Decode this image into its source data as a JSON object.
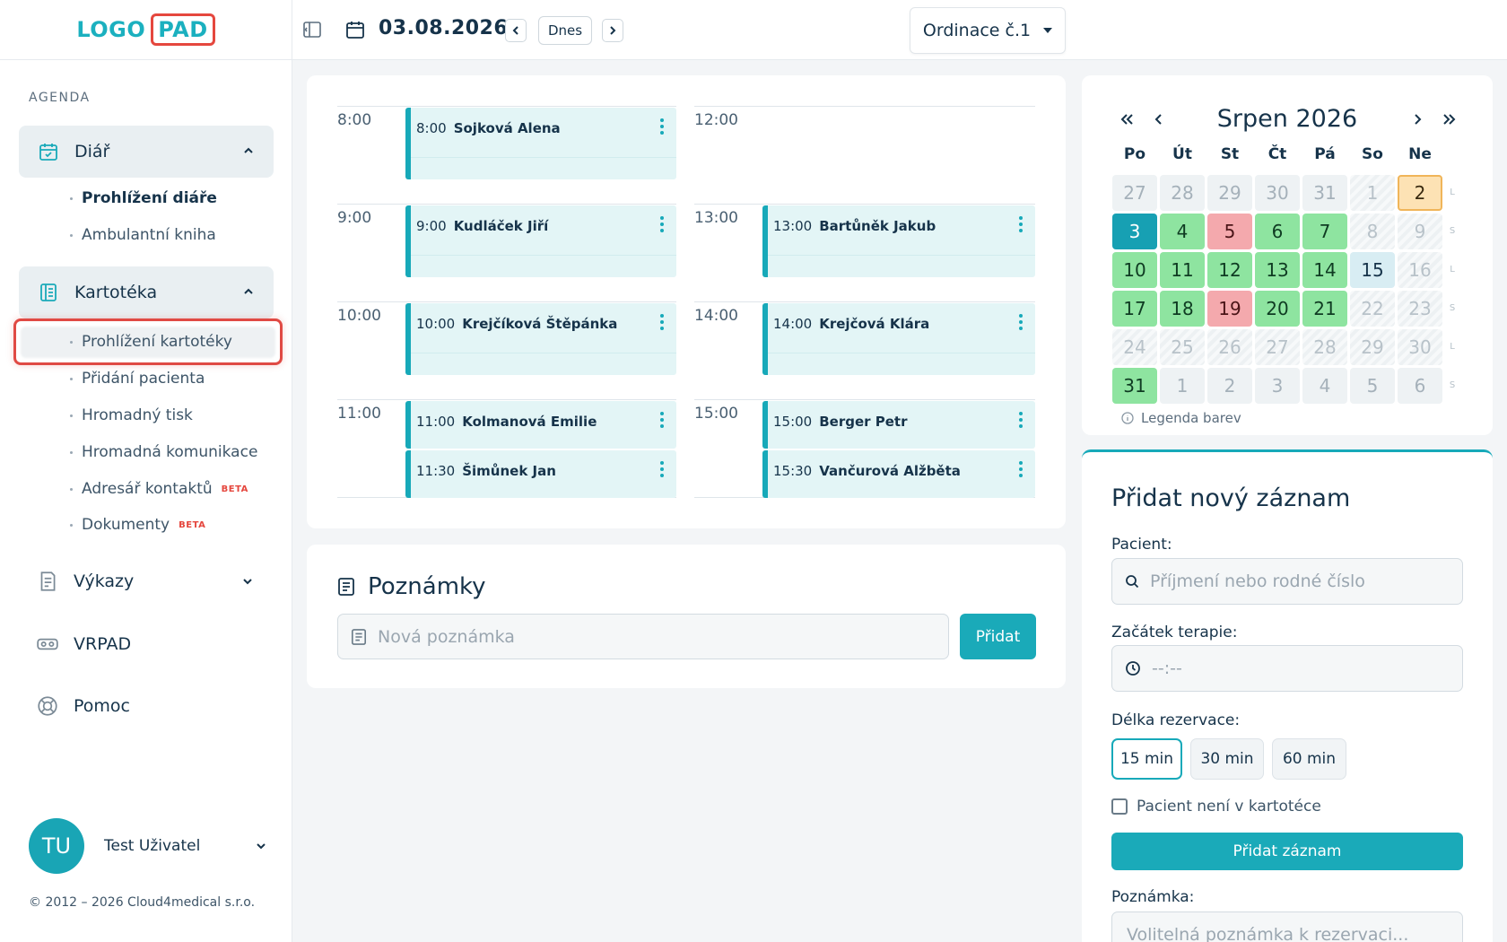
{
  "logo": {
    "part1": "LOGO",
    "part2": "PAD"
  },
  "sidebar": {
    "section_title": "AGENDA",
    "diar": {
      "label": "Diář",
      "items": [
        "Prohlížení diáře",
        "Ambulantní kniha"
      ]
    },
    "kartoteka": {
      "label": "Kartotéka",
      "items": [
        "Prohlížení kartotéky",
        "Přidání pacienta",
        "Hromadný tisk",
        "Hromadná komunikace",
        "Adresář kontaktů",
        "Dokumenty"
      ],
      "beta": "BETA"
    },
    "vykazy": "Výkazy",
    "vrpad": "VRPAD",
    "pomoc": "Pomoc",
    "user": {
      "initials": "TU",
      "name": "Test Uživatel"
    },
    "copyright": "© 2012 – 2026 Cloud4medical s.r.o."
  },
  "topbar": {
    "date": "03.08.2026",
    "today": "Dnes",
    "office": "Ordinace č.1"
  },
  "schedule": {
    "times": [
      "8:00",
      "9:00",
      "10:00",
      "11:00",
      "12:00",
      "13:00",
      "14:00",
      "15:00"
    ],
    "appointments": [
      {
        "time": "8:00",
        "name": "Sojková Alena"
      },
      {
        "time": "9:00",
        "name": "Kudláček Jiří"
      },
      {
        "time": "10:00",
        "name": "Krejčíková Štěpánka"
      },
      {
        "time": "11:00",
        "name": "Kolmanová Emilie"
      },
      {
        "time": "11:30",
        "name": "Šimůnek Jan"
      },
      {
        "time": "13:00",
        "name": "Bartůněk Jakub"
      },
      {
        "time": "14:00",
        "name": "Krejčová Klára"
      },
      {
        "time": "15:00",
        "name": "Berger Petr"
      },
      {
        "time": "15:30",
        "name": "Vančurová Alžběta"
      }
    ]
  },
  "notes": {
    "title": "Poznámky",
    "placeholder": "Nová poznámka",
    "button": "Přidat"
  },
  "calendar": {
    "month": "Srpen 2026",
    "prev_year": "«",
    "prev": "‹",
    "next": "›",
    "next_year": "»",
    "weekdays": [
      "Po",
      "Út",
      "St",
      "Čt",
      "Pá",
      "So",
      "Ne"
    ],
    "week_letters": [
      "L",
      "S",
      "L",
      "S",
      "L",
      "S"
    ],
    "rows": [
      [
        [
          "27",
          "gray"
        ],
        [
          "28",
          "gray"
        ],
        [
          "29",
          "gray"
        ],
        [
          "30",
          "gray"
        ],
        [
          "31",
          "gray"
        ],
        [
          "1",
          "weekend"
        ],
        [
          "2",
          "orange"
        ]
      ],
      [
        [
          "3",
          "today"
        ],
        [
          "4",
          "green"
        ],
        [
          "5",
          "red"
        ],
        [
          "6",
          "green"
        ],
        [
          "7",
          "green"
        ],
        [
          "8",
          "weekend"
        ],
        [
          "9",
          "weekend"
        ]
      ],
      [
        [
          "10",
          "green"
        ],
        [
          "11",
          "green"
        ],
        [
          "12",
          "green"
        ],
        [
          "13",
          "green"
        ],
        [
          "14",
          "green"
        ],
        [
          "15",
          "sel"
        ],
        [
          "16",
          "weekend"
        ]
      ],
      [
        [
          "17",
          "green"
        ],
        [
          "18",
          "green"
        ],
        [
          "19",
          "red"
        ],
        [
          "20",
          "green"
        ],
        [
          "21",
          "green"
        ],
        [
          "22",
          "weekend"
        ],
        [
          "23",
          "weekend"
        ]
      ],
      [
        [
          "24",
          "weekend"
        ],
        [
          "25",
          "weekend"
        ],
        [
          "26",
          "weekend"
        ],
        [
          "27",
          "weekend"
        ],
        [
          "28",
          "weekend"
        ],
        [
          "29",
          "weekend"
        ],
        [
          "30",
          "weekend"
        ]
      ],
      [
        [
          "31",
          "green"
        ],
        [
          "1",
          "gray"
        ],
        [
          "2",
          "gray"
        ],
        [
          "3",
          "gray"
        ],
        [
          "4",
          "gray"
        ],
        [
          "5",
          "gray"
        ],
        [
          "6",
          "gray"
        ]
      ]
    ],
    "legend": "Legenda barev",
    "colors": {
      "green": "#8ee4a0",
      "red": "#f4a9ad",
      "today": "#17a0b3",
      "orange": "#fde2b4"
    }
  },
  "add_record": {
    "title": "Přidat nový záznam",
    "patient_label": "Pacient:",
    "patient_placeholder": "Příjmení nebo rodné číslo",
    "start_label": "Začátek terapie:",
    "start_placeholder": "--:--",
    "duration_label": "Délka rezervace:",
    "durations": [
      "15 min",
      "30 min",
      "60 min"
    ],
    "not_in_registry": "Pacient není v kartotéce",
    "submit": "Přidat záznam",
    "note_label": "Poznámka:",
    "note_placeholder": "Volitelná poznámka k rezervaci..."
  },
  "accent_color": "#1aaab9",
  "highlight_color": "#e04a44"
}
